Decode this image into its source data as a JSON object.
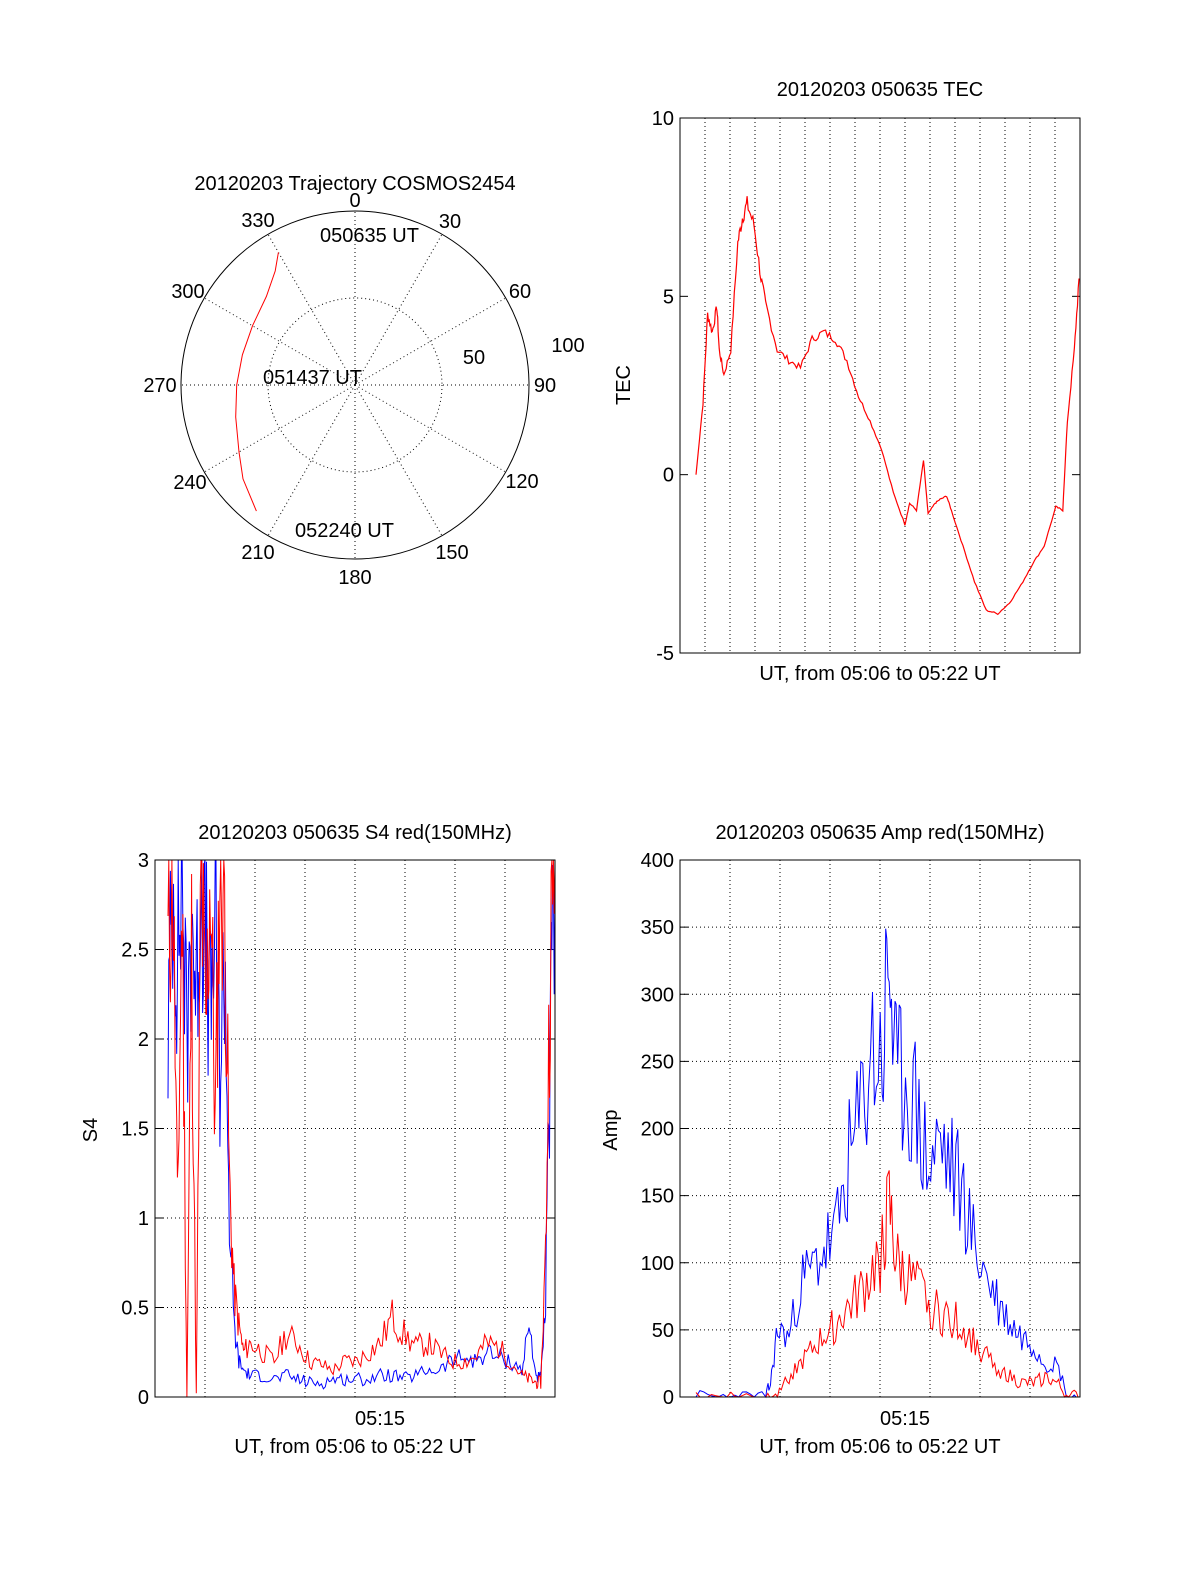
{
  "colors": {
    "red": "#ff0000",
    "blue": "#0000ff",
    "axis": "#000000"
  },
  "chart_data": [
    {
      "id": "trajectory",
      "type": "polar",
      "title": "20120203 Trajectory COSMOS2454",
      "angle_labels": [
        "0",
        "30",
        "60",
        "90",
        "120",
        "150",
        "180",
        "210",
        "240",
        "270",
        "300",
        "330"
      ],
      "radial_labels": [
        "50",
        "100"
      ],
      "track_labels": [
        "050635 UT",
        "051437 UT",
        "052240 UT"
      ],
      "track": {
        "azimuth_deg": [
          330,
          325,
          315,
          300,
          285,
          270,
          255,
          240,
          230,
          218
        ],
        "zenith_deg": [
          88,
          80,
          72,
          68,
          67,
          68,
          71,
          77,
          84,
          92
        ]
      }
    },
    {
      "id": "tec",
      "type": "line",
      "title": "20120203 050635 TEC",
      "xlabel": "UT, from 05:06 to 05:22 UT",
      "ylabel": "TEC",
      "ylim": [
        -5,
        10
      ],
      "yticks": [
        "-5",
        "0",
        "5",
        "10"
      ],
      "x_minutes": [
        0.0,
        0.3,
        0.5,
        0.7,
        0.9,
        1.0,
        1.2,
        1.5,
        1.8,
        2.0,
        2.2,
        2.5,
        2.8,
        3.0,
        3.5,
        4.0,
        4.5,
        5.0,
        5.5,
        6.0,
        6.5,
        7.0,
        7.5,
        8.0,
        8.5,
        9.0,
        9.2,
        9.5,
        9.8,
        10.0,
        10.3,
        10.5,
        10.8,
        11.0,
        11.5,
        12.0,
        12.5,
        13.0,
        13.5,
        14.0,
        14.5,
        15.0,
        15.5,
        15.8,
        16.0,
        16.3,
        16.5
      ],
      "tec": [
        0.0,
        2.0,
        4.5,
        4.0,
        4.7,
        3.5,
        2.8,
        3.5,
        6.5,
        7.2,
        7.6,
        7.0,
        5.5,
        4.8,
        3.5,
        3.2,
        3.0,
        3.8,
        4.0,
        3.8,
        3.2,
        2.2,
        1.5,
        0.7,
        -0.5,
        -1.4,
        -0.8,
        -1.0,
        0.4,
        -1.1,
        -0.8,
        -0.7,
        -0.6,
        -1.0,
        -2.0,
        -3.0,
        -3.8,
        -3.9,
        -3.6,
        -3.1,
        -2.5,
        -2.0,
        -0.9,
        -1.0,
        1.5,
        3.5,
        5.5
      ]
    },
    {
      "id": "s4",
      "type": "line",
      "title": "20120203 050635 S4 red(150MHz)",
      "xlabel": "UT, from 05:06 to 05:22 UT",
      "ylabel": "S4",
      "ylim": [
        0,
        3
      ],
      "yticks": [
        "0",
        "0.5",
        "1",
        "1.5",
        "2",
        "2.5",
        "3"
      ],
      "xticks": [
        "05:15"
      ],
      "series": [
        {
          "color": "red",
          "x_minutes": [
            0.0,
            0.2,
            0.4,
            0.6,
            0.8,
            1.0,
            1.2,
            1.4,
            1.6,
            1.8,
            2.0,
            2.2,
            2.4,
            2.6,
            2.8,
            3.0,
            3.2,
            3.5,
            4.0,
            4.5,
            5.0,
            5.5,
            6.0,
            6.5,
            7.0,
            7.5,
            8.0,
            8.5,
            9.0,
            9.5,
            10.0,
            10.5,
            11.0,
            11.5,
            12.0,
            12.5,
            13.0,
            13.5,
            14.0,
            14.5,
            15.0,
            15.3,
            15.6,
            15.8,
            16.0,
            16.2,
            16.4
          ],
          "values": [
            2.5,
            3.0,
            1.0,
            2.8,
            0.0,
            2.5,
            0.0,
            3.0,
            2.0,
            3.0,
            1.5,
            3.0,
            2.8,
            1.2,
            0.6,
            0.4,
            0.25,
            0.3,
            0.25,
            0.2,
            0.35,
            0.3,
            0.2,
            0.18,
            0.15,
            0.2,
            0.2,
            0.25,
            0.3,
            0.45,
            0.35,
            0.28,
            0.3,
            0.25,
            0.2,
            0.2,
            0.22,
            0.3,
            0.28,
            0.2,
            0.12,
            0.1,
            0.08,
            0.08,
            0.8,
            2.5,
            3.0
          ]
        },
        {
          "color": "blue",
          "x_minutes": [
            0.0,
            0.2,
            0.4,
            0.6,
            0.8,
            1.0,
            1.2,
            1.4,
            1.6,
            1.8,
            2.0,
            2.2,
            2.4,
            2.6,
            2.8,
            3.0,
            3.2,
            3.5,
            4.0,
            4.5,
            5.0,
            5.5,
            6.0,
            6.5,
            7.0,
            7.5,
            8.0,
            8.5,
            9.0,
            9.5,
            10.0,
            10.5,
            11.0,
            11.5,
            12.0,
            12.5,
            13.0,
            13.5,
            14.0,
            14.5,
            15.0,
            15.3,
            15.6,
            15.8,
            16.0,
            16.2,
            16.4
          ],
          "values": [
            2.0,
            2.9,
            2.4,
            3.0,
            1.9,
            2.8,
            2.2,
            3.0,
            2.5,
            2.1,
            2.7,
            1.8,
            2.5,
            1.0,
            0.4,
            0.2,
            0.15,
            0.12,
            0.12,
            0.1,
            0.12,
            0.1,
            0.08,
            0.08,
            0.1,
            0.1,
            0.1,
            0.1,
            0.12,
            0.12,
            0.1,
            0.12,
            0.15,
            0.15,
            0.2,
            0.22,
            0.2,
            0.25,
            0.22,
            0.2,
            0.15,
            0.4,
            0.12,
            0.1,
            0.5,
            2.0,
            2.8
          ]
        }
      ]
    },
    {
      "id": "amp",
      "type": "line",
      "title": "20120203 050635 Amp red(150MHz)",
      "xlabel": "UT, from 05:06 to 05:22 UT",
      "ylabel": "Amp",
      "ylim": [
        0,
        400
      ],
      "yticks": [
        "0",
        "50",
        "100",
        "150",
        "200",
        "250",
        "300",
        "350",
        "400"
      ],
      "xticks": [
        "05:15"
      ],
      "series": [
        {
          "color": "blue",
          "x_minutes": [
            0.0,
            1.0,
            2.0,
            3.0,
            3.2,
            3.5,
            4.0,
            4.5,
            5.0,
            5.5,
            6.0,
            6.5,
            7.0,
            7.5,
            8.0,
            8.3,
            8.6,
            9.0,
            9.5,
            10.0,
            10.5,
            11.0,
            11.5,
            12.0,
            12.5,
            13.0,
            13.5,
            14.0,
            14.5,
            15.0,
            15.5,
            16.0,
            16.5
          ],
          "values": [
            0,
            0,
            0,
            0,
            10,
            50,
            45,
            85,
            95,
            110,
            120,
            170,
            200,
            260,
            250,
            330,
            230,
            240,
            210,
            170,
            190,
            170,
            150,
            110,
            90,
            70,
            55,
            45,
            40,
            25,
            25,
            0,
            0
          ]
        },
        {
          "color": "red",
          "x_minutes": [
            0.0,
            1.0,
            2.0,
            3.0,
            3.5,
            4.0,
            4.5,
            5.0,
            5.5,
            6.0,
            6.5,
            7.0,
            7.5,
            8.0,
            8.3,
            8.6,
            9.0,
            9.5,
            10.0,
            10.5,
            11.0,
            11.5,
            12.0,
            12.5,
            13.0,
            13.5,
            14.0,
            14.5,
            15.0,
            15.5,
            16.0,
            16.5
          ],
          "values": [
            0,
            0,
            0,
            0,
            5,
            15,
            25,
            35,
            45,
            55,
            65,
            75,
            90,
            110,
            140,
            100,
            90,
            80,
            70,
            60,
            60,
            50,
            40,
            30,
            20,
            15,
            10,
            10,
            15,
            10,
            0,
            0
          ]
        }
      ]
    }
  ]
}
